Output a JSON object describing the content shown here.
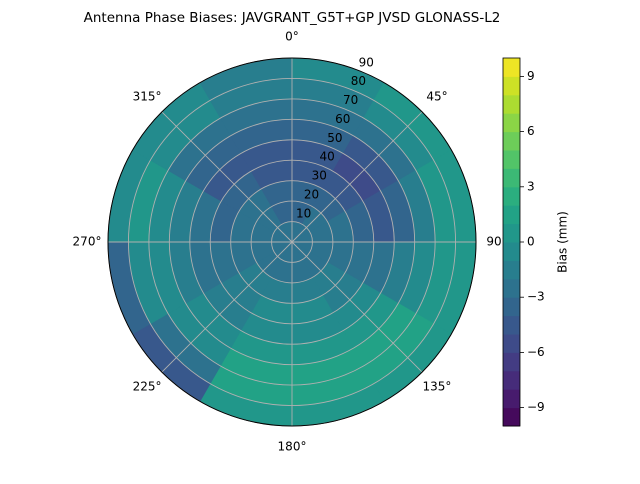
{
  "chart_data": {
    "type": "polar-contour",
    "title": "Antenna Phase Biases: JAVGRANT_G5T+GP JVSD GLONASS-L2",
    "theta_bins": [
      0,
      30,
      60,
      90,
      120,
      150,
      180,
      210,
      240,
      270,
      300,
      330,
      360
    ],
    "r_bins": [
      0,
      10,
      20,
      30,
      40,
      50,
      60,
      70,
      80,
      90
    ],
    "values": [
      [
        -3,
        -3,
        -3,
        -3,
        -3,
        -3,
        -3,
        -3,
        -3,
        -3,
        -3,
        -3
      ],
      [
        -4,
        -3,
        -3,
        -3,
        -3,
        -3,
        -3,
        -3,
        -3,
        -3,
        -3,
        -4
      ],
      [
        -4,
        -4,
        -3,
        -3,
        -2,
        -2,
        -2,
        -2,
        -3,
        -3,
        -3,
        -4
      ],
      [
        -5,
        -5,
        -4,
        -3,
        -2,
        -1,
        -1,
        -2,
        -3,
        -4,
        -4,
        -5
      ],
      [
        -5,
        -6,
        -5,
        -3,
        -1,
        -1,
        -1,
        -2,
        -3,
        -3,
        -5,
        -5
      ],
      [
        -4,
        -5,
        -4,
        -2,
        0,
        0,
        0,
        -1,
        -2,
        -2,
        -4,
        -4
      ],
      [
        -3,
        -3,
        -2,
        -1,
        1,
        1,
        1,
        -1,
        -1,
        -1,
        -3,
        -3
      ],
      [
        -2,
        -1,
        0,
        0,
        1,
        1,
        1,
        -3,
        -1,
        0,
        -1,
        -2
      ],
      [
        -1,
        0,
        0,
        0,
        0,
        0,
        0,
        -5,
        -4,
        -1,
        -1,
        -2
      ]
    ],
    "rlim": [
      0,
      90
    ],
    "rticks": [
      10,
      20,
      30,
      40,
      50,
      60,
      70,
      80,
      90
    ],
    "thetaticks": [
      {
        "value": 0,
        "label": "0°"
      },
      {
        "value": 45,
        "label": "45°"
      },
      {
        "value": 90,
        "label": "90°"
      },
      {
        "value": 135,
        "label": "135°"
      },
      {
        "value": 180,
        "label": "180°"
      },
      {
        "value": 225,
        "label": "225°"
      },
      {
        "value": 270,
        "label": "270°"
      },
      {
        "value": 315,
        "label": "315°"
      }
    ],
    "colormap": "viridis",
    "clim": [
      -10,
      10
    ],
    "n_levels": 20,
    "colorbar_label": "Bias (mm)",
    "colorbar_ticks": [
      {
        "value": -9,
        "label": "−9"
      },
      {
        "value": -6,
        "label": "−6"
      },
      {
        "value": -3,
        "label": "−3"
      },
      0,
      3,
      6,
      9
    ],
    "grid": true
  }
}
